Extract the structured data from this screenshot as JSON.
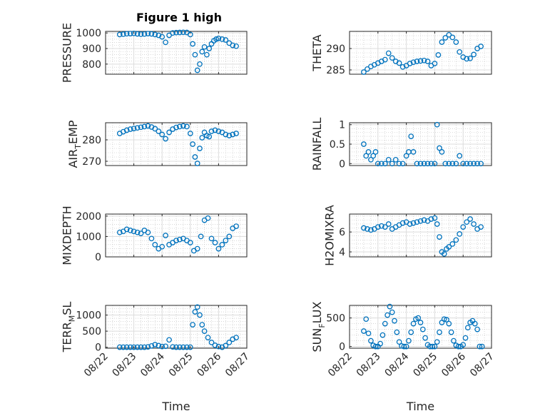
{
  "figure_title": "Figure 1 high",
  "chart_data": [
    {
      "type": "scatter",
      "ylabel": "PRESSURE",
      "ylim": [
        735,
        1010
      ],
      "yticks": [
        "800",
        "900",
        "1000"
      ],
      "xlim": [
        "08/22",
        "08/27"
      ],
      "xtick_labels": [],
      "grid": true,
      "x": [
        "08/22 12:00",
        "08/22 15:00",
        "08/22 18:00",
        "08/22 21:00",
        "08/23 00:00",
        "08/23 03:00",
        "08/23 06:00",
        "08/23 09:00",
        "08/23 12:00",
        "08/23 15:00",
        "08/23 18:00",
        "08/23 21:00",
        "08/24 00:00",
        "08/24 03:00",
        "08/24 06:00",
        "08/24 09:00",
        "08/24 12:00",
        "08/24 15:00",
        "08/24 18:00",
        "08/24 21:00",
        "08/25 00:00",
        "08/25 02:00",
        "08/25 04:00",
        "08/25 06:00",
        "08/25 08:00",
        "08/25 10:00",
        "08/25 12:00",
        "08/25 14:00",
        "08/25 16:00",
        "08/25 18:00",
        "08/25 20:00",
        "08/25 22:00",
        "08/26 00:00",
        "08/26 03:00",
        "08/26 06:00",
        "08/26 09:00",
        "08/26 12:00",
        "08/26 15:00"
      ],
      "y": [
        990,
        992,
        995,
        996,
        997,
        994,
        992,
        993,
        996,
        994,
        990,
        985,
        975,
        940,
        985,
        1000,
        1002,
        1003,
        1004,
        1003,
        990,
        930,
        860,
        760,
        800,
        880,
        910,
        860,
        900,
        930,
        950,
        960,
        965,
        960,
        955,
        935,
        920,
        915
      ]
    },
    {
      "type": "scatter",
      "ylabel": "THETA",
      "ylim": [
        284,
        294
      ],
      "yticks": [
        "285",
        "290"
      ],
      "xlim": [
        "08/22",
        "08/27"
      ],
      "xtick_labels": [],
      "grid": true,
      "x": [
        "08/22 12:00",
        "08/22 15:00",
        "08/22 18:00",
        "08/22 21:00",
        "08/23 00:00",
        "08/23 03:00",
        "08/23 06:00",
        "08/23 09:00",
        "08/23 12:00",
        "08/23 15:00",
        "08/23 18:00",
        "08/23 21:00",
        "08/24 00:00",
        "08/24 03:00",
        "08/24 06:00",
        "08/24 09:00",
        "08/24 12:00",
        "08/24 15:00",
        "08/24 18:00",
        "08/24 21:00",
        "08/25 00:00",
        "08/25 03:00",
        "08/25 06:00",
        "08/25 09:00",
        "08/25 12:00",
        "08/25 15:00",
        "08/25 18:00",
        "08/25 21:00",
        "08/26 00:00",
        "08/26 03:00",
        "08/26 06:00",
        "08/26 09:00",
        "08/26 12:00",
        "08/26 15:00"
      ],
      "y": [
        284.5,
        285.2,
        285.8,
        286.2,
        286.6,
        287.0,
        287.4,
        288.9,
        287.8,
        287.0,
        286.6,
        285.7,
        286.0,
        286.5,
        286.8,
        287.0,
        287.1,
        287.2,
        287.0,
        286.0,
        286.5,
        288.5,
        291.5,
        292.5,
        293.2,
        292.6,
        291.5,
        289.2,
        288.0,
        287.6,
        287.7,
        288.6,
        290.0,
        290.5
      ]
    },
    {
      "type": "scatter",
      "ylabel": "AIR_TEMP",
      "ylim": [
        268,
        288
      ],
      "yticks": [
        "270",
        "280"
      ],
      "xlim": [
        "08/22",
        "08/27"
      ],
      "xtick_labels": [],
      "grid": true,
      "x": [
        "08/22 12:00",
        "08/22 15:00",
        "08/22 18:00",
        "08/22 21:00",
        "08/23 00:00",
        "08/23 03:00",
        "08/23 06:00",
        "08/23 09:00",
        "08/23 12:00",
        "08/23 15:00",
        "08/23 18:00",
        "08/23 21:00",
        "08/24 00:00",
        "08/24 03:00",
        "08/24 06:00",
        "08/24 09:00",
        "08/24 12:00",
        "08/24 15:00",
        "08/24 18:00",
        "08/24 21:00",
        "08/25 00:00",
        "08/25 02:00",
        "08/25 04:00",
        "08/25 06:00",
        "08/25 08:00",
        "08/25 10:00",
        "08/25 12:00",
        "08/25 14:00",
        "08/25 16:00",
        "08/25 18:00",
        "08/25 21:00",
        "08/26 00:00",
        "08/26 03:00",
        "08/26 06:00",
        "08/26 09:00",
        "08/26 12:00",
        "08/26 15:00"
      ],
      "y": [
        283.0,
        283.8,
        284.5,
        285.0,
        285.3,
        285.6,
        285.9,
        286.2,
        286.5,
        286.0,
        285.2,
        284.0,
        282.5,
        280.5,
        283.5,
        285.0,
        285.8,
        286.2,
        286.5,
        286.2,
        283.0,
        278.0,
        272.0,
        269.0,
        276.0,
        281.0,
        283.5,
        282.0,
        281.5,
        284.0,
        284.5,
        284.0,
        283.5,
        282.5,
        282.0,
        282.5,
        283.0
      ]
    },
    {
      "type": "scatter",
      "ylabel": "RAINFALL",
      "ylim": [
        -0.05,
        1.05
      ],
      "yticks": [
        "0",
        "0.5",
        "1"
      ],
      "xlim": [
        "08/22",
        "08/27"
      ],
      "xtick_labels": [],
      "grid": true,
      "x": [
        "08/22 12:00",
        "08/22 14:00",
        "08/22 16:00",
        "08/22 18:00",
        "08/22 20:00",
        "08/22 22:00",
        "08/23 00:00",
        "08/23 03:00",
        "08/23 06:00",
        "08/23 09:00",
        "08/23 12:00",
        "08/23 15:00",
        "08/23 18:00",
        "08/23 21:00",
        "08/24 00:00",
        "08/24 02:00",
        "08/24 04:00",
        "08/24 06:00",
        "08/24 09:00",
        "08/24 12:00",
        "08/24 15:00",
        "08/24 18:00",
        "08/24 21:00",
        "08/25 00:00",
        "08/25 02:00",
        "08/25 04:00",
        "08/25 06:00",
        "08/25 09:00",
        "08/25 12:00",
        "08/25 15:00",
        "08/25 18:00",
        "08/25 21:00",
        "08/26 00:00",
        "08/26 03:00",
        "08/26 06:00",
        "08/26 09:00",
        "08/26 12:00",
        "08/26 15:00"
      ],
      "y": [
        0.5,
        0.2,
        0.3,
        0.1,
        0.2,
        0.3,
        0,
        0,
        0,
        0.1,
        0,
        0.1,
        0,
        0,
        0.2,
        0.3,
        0.7,
        0.3,
        0,
        0,
        0,
        0,
        0,
        0,
        1.0,
        0.4,
        0.3,
        0,
        0,
        0,
        0,
        0.2,
        0,
        0,
        0,
        0,
        0,
        0
      ]
    },
    {
      "type": "scatter",
      "ylabel": "MIXDEPTH",
      "ylim": [
        0,
        2100
      ],
      "yticks": [
        "0",
        "1000",
        "2000"
      ],
      "xlim": [
        "08/22",
        "08/27"
      ],
      "xtick_labels": [],
      "grid": true,
      "x": [
        "08/22 12:00",
        "08/22 15:00",
        "08/22 18:00",
        "08/22 21:00",
        "08/23 00:00",
        "08/23 03:00",
        "08/23 06:00",
        "08/23 09:00",
        "08/23 12:00",
        "08/23 15:00",
        "08/23 18:00",
        "08/23 21:00",
        "08/24 00:00",
        "08/24 03:00",
        "08/24 06:00",
        "08/24 09:00",
        "08/24 12:00",
        "08/24 15:00",
        "08/24 18:00",
        "08/24 21:00",
        "08/25 00:00",
        "08/25 03:00",
        "08/25 06:00",
        "08/25 09:00",
        "08/25 12:00",
        "08/25 15:00",
        "08/25 18:00",
        "08/25 21:00",
        "08/26 00:00",
        "08/26 03:00",
        "08/26 06:00",
        "08/26 09:00",
        "08/26 12:00",
        "08/26 15:00"
      ],
      "y": [
        1200,
        1250,
        1350,
        1300,
        1250,
        1200,
        1150,
        1300,
        1200,
        900,
        600,
        400,
        500,
        1050,
        600,
        700,
        800,
        850,
        900,
        800,
        700,
        300,
        400,
        1000,
        1800,
        1900,
        900,
        700,
        400,
        600,
        800,
        1000,
        1400,
        1500
      ]
    },
    {
      "type": "scatter",
      "ylabel": "H2OMIXRA",
      "ylim": [
        3.5,
        7.8
      ],
      "yticks": [
        "4",
        "6"
      ],
      "xlim": [
        "08/22",
        "08/27"
      ],
      "xtick_labels": [],
      "grid": true,
      "x": [
        "08/22 12:00",
        "08/22 15:00",
        "08/22 18:00",
        "08/22 21:00",
        "08/23 00:00",
        "08/23 03:00",
        "08/23 06:00",
        "08/23 09:00",
        "08/23 12:00",
        "08/23 15:00",
        "08/23 18:00",
        "08/23 21:00",
        "08/24 00:00",
        "08/24 03:00",
        "08/24 06:00",
        "08/24 09:00",
        "08/24 12:00",
        "08/24 15:00",
        "08/24 18:00",
        "08/24 21:00",
        "08/25 00:00",
        "08/25 02:00",
        "08/25 04:00",
        "08/25 06:00",
        "08/25 08:00",
        "08/25 10:00",
        "08/25 12:00",
        "08/25 15:00",
        "08/25 18:00",
        "08/25 21:00",
        "08/26 00:00",
        "08/26 03:00",
        "08/26 06:00",
        "08/26 09:00",
        "08/26 12:00",
        "08/26 15:00"
      ],
      "y": [
        6.4,
        6.3,
        6.2,
        6.3,
        6.5,
        6.6,
        6.5,
        6.8,
        6.3,
        6.5,
        6.7,
        6.9,
        7.0,
        6.8,
        6.9,
        7.0,
        7.1,
        7.2,
        7.1,
        7.3,
        7.4,
        6.8,
        5.5,
        4.0,
        3.8,
        4.3,
        4.5,
        4.8,
        5.2,
        5.8,
        6.5,
        7.0,
        7.3,
        6.8,
        6.3,
        6.5
      ]
    },
    {
      "type": "scatter",
      "ylabel": "TERR_MSL",
      "ylim": [
        -30,
        1300
      ],
      "yticks": [
        "0",
        "500",
        "1000"
      ],
      "xlim": [
        "08/22",
        "08/27"
      ],
      "xtick_labels": [
        "08/22",
        "08/23",
        "08/24",
        "08/25",
        "08/26",
        "08/27"
      ],
      "xlabel": "Time",
      "grid": true,
      "x": [
        "08/22 12:00",
        "08/22 15:00",
        "08/22 18:00",
        "08/22 21:00",
        "08/23 00:00",
        "08/23 03:00",
        "08/23 06:00",
        "08/23 09:00",
        "08/23 12:00",
        "08/23 15:00",
        "08/23 18:00",
        "08/23 21:00",
        "08/24 00:00",
        "08/24 03:00",
        "08/24 06:00",
        "08/24 09:00",
        "08/24 12:00",
        "08/24 15:00",
        "08/24 18:00",
        "08/24 21:00",
        "08/25 00:00",
        "08/25 02:00",
        "08/25 04:00",
        "08/25 06:00",
        "08/25 08:00",
        "08/25 10:00",
        "08/25 12:00",
        "08/25 15:00",
        "08/25 18:00",
        "08/25 21:00",
        "08/26 00:00",
        "08/26 03:00",
        "08/26 06:00",
        "08/26 09:00",
        "08/26 12:00",
        "08/26 15:00"
      ],
      "y": [
        0,
        0,
        0,
        0,
        0,
        0,
        0,
        0,
        10,
        40,
        80,
        50,
        20,
        30,
        230,
        10,
        0,
        0,
        0,
        0,
        0,
        700,
        1100,
        1250,
        1000,
        700,
        500,
        300,
        150,
        60,
        20,
        0,
        50,
        150,
        250,
        300
      ]
    },
    {
      "type": "scatter",
      "ylabel": "SUN_FLUX",
      "ylim": [
        -30,
        720
      ],
      "yticks": [
        "0",
        "500"
      ],
      "xlim": [
        "08/22",
        "08/27"
      ],
      "xtick_labels": [
        "08/22",
        "08/23",
        "08/24",
        "08/25",
        "08/26",
        "08/27"
      ],
      "xlabel": "Time",
      "grid": true,
      "x": [
        "08/22 12:00",
        "08/22 14:00",
        "08/22 16:00",
        "08/22 18:00",
        "08/22 20:00",
        "08/22 22:00",
        "08/23 00:00",
        "08/23 02:00",
        "08/23 04:00",
        "08/23 06:00",
        "08/23 08:00",
        "08/23 10:00",
        "08/23 12:00",
        "08/23 14:00",
        "08/23 16:00",
        "08/23 18:00",
        "08/23 20:00",
        "08/23 22:00",
        "08/24 00:00",
        "08/24 02:00",
        "08/24 04:00",
        "08/24 06:00",
        "08/24 08:00",
        "08/24 10:00",
        "08/24 12:00",
        "08/24 14:00",
        "08/24 16:00",
        "08/24 18:00",
        "08/24 20:00",
        "08/24 22:00",
        "08/25 00:00",
        "08/25 02:00",
        "08/25 04:00",
        "08/25 06:00",
        "08/25 08:00",
        "08/25 10:00",
        "08/25 12:00",
        "08/25 14:00",
        "08/25 16:00",
        "08/25 18:00",
        "08/25 20:00",
        "08/25 22:00",
        "08/26 00:00",
        "08/26 02:00",
        "08/26 04:00",
        "08/26 06:00",
        "08/26 08:00",
        "08/26 10:00",
        "08/26 12:00",
        "08/26 14:00",
        "08/26 16:00"
      ],
      "y": [
        270,
        480,
        230,
        100,
        20,
        0,
        0,
        50,
        200,
        400,
        550,
        700,
        600,
        450,
        250,
        80,
        10,
        0,
        0,
        100,
        250,
        400,
        480,
        500,
        420,
        300,
        150,
        30,
        0,
        0,
        0,
        80,
        250,
        420,
        480,
        470,
        400,
        250,
        100,
        20,
        0,
        0,
        30,
        150,
        330,
        420,
        450,
        400,
        300,
        0,
        0
      ]
    }
  ]
}
